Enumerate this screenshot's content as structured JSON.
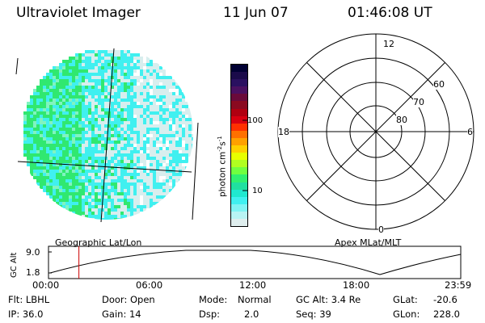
{
  "header": {
    "instrument": "Ultraviolet Imager",
    "date": "11 Jun 07",
    "time": "01:46:08 UT"
  },
  "colorbar": {
    "label": "photon cm",
    "label_sup1": "-2",
    "label_mid": "s",
    "label_sup2": "-1",
    "ticks": [
      "100",
      "10"
    ],
    "colors": [
      "#000033",
      "#1a0a4a",
      "#2a1060",
      "#4a1060",
      "#6a0a3a",
      "#8a0a20",
      "#b00010",
      "#d80010",
      "#ff3000",
      "#ff7000",
      "#ffa000",
      "#ffd000",
      "#e8ff00",
      "#b0ff20",
      "#70ff40",
      "#30f070",
      "#20e0a0",
      "#20e8d0",
      "#40f0f0",
      "#80f4f4",
      "#b8f4f4",
      "#dfeeee"
    ]
  },
  "polar_plot": {
    "labels_mlt": [
      "12",
      "18",
      "6",
      "0"
    ],
    "labels_lat": [
      "60",
      "70",
      "80"
    ],
    "title": "Apex MLat/MLT"
  },
  "image_panel": {
    "title": "Geographic Lat/Lon",
    "colors": {
      "green": "#30e870",
      "cyan": "#40f0f0",
      "light": "#d8eeee"
    }
  },
  "timeline": {
    "ylabel": "GC Alt",
    "yticks": [
      "9.0",
      "1.8"
    ],
    "xticks": [
      "00:00",
      "06:00",
      "12:00",
      "18:00",
      "23:59"
    ],
    "marker_time_hours": 1.77,
    "marker_color": "#cc0000"
  },
  "footer": {
    "col1": [
      "Flt: LBHL",
      "IP: 36.0"
    ],
    "col2": [
      "Door: Open",
      "Gain: 14"
    ],
    "col3_top_label": "Mode:",
    "col3_top_value": "Normal",
    "col3_bot_label": "Dsp:",
    "col3_bot_value": "2.0",
    "col4": [
      "GC Alt: 3.4 Re",
      "Seq: 39"
    ],
    "col5_top_label": "GLat:",
    "col5_top_value": "-20.6",
    "col5_bot_label": "GLon:",
    "col5_bot_value": "228.0"
  }
}
